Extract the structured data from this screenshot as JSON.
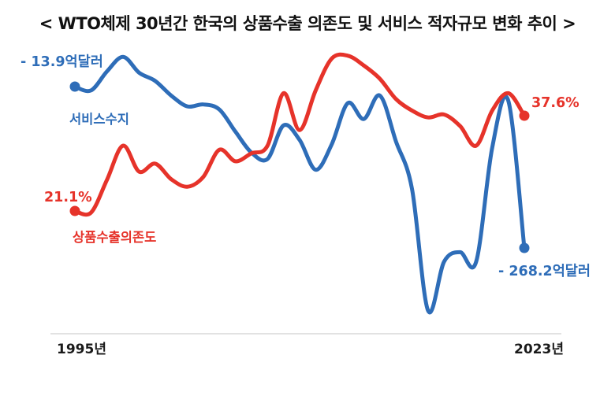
{
  "page": {
    "background": "#ffffff"
  },
  "chart_data": {
    "type": "line",
    "title": "< WTO체제 30년간 한국의 상품수출 의존도 및 서비스 적자규모 변화 추이 >",
    "x": [
      1995,
      1996,
      1997,
      1998,
      1999,
      2000,
      2001,
      2002,
      2003,
      2004,
      2005,
      2006,
      2007,
      2008,
      2009,
      2010,
      2011,
      2012,
      2013,
      2014,
      2015,
      2016,
      2017,
      2018,
      2019,
      2020,
      2021,
      2022,
      2023
    ],
    "series": [
      {
        "name": "서비스수지",
        "unit": "억달러",
        "color": "#2e6db8",
        "axis": "left",
        "values": [
          -13.9,
          -20,
          10,
          33,
          8,
          -5,
          -28,
          -45,
          -42,
          -50,
          -85,
          -118,
          -128,
          -75,
          -98,
          -145,
          -105,
          -40,
          -65,
          -28,
          -100,
          -175,
          -367,
          -290,
          -275,
          -290,
          -110,
          -36,
          -268.2
        ]
      },
      {
        "name": "상품수출의존도",
        "unit": "%",
        "color": "#e6332a",
        "axis": "right",
        "values": [
          21.1,
          20.8,
          26.5,
          32.4,
          27.9,
          29.3,
          26.6,
          25.3,
          27.0,
          31.7,
          29.7,
          31.1,
          32.4,
          41.5,
          35.1,
          42.0,
          47.5,
          48.0,
          46.3,
          44.0,
          40.5,
          38.5,
          37.3,
          37.8,
          35.8,
          32.4,
          38.5,
          41.5,
          37.6
        ]
      }
    ],
    "annotations": {
      "services_start": "- 13.9억달러",
      "services_end": "- 268.2억달러",
      "export_start": "21.1%",
      "export_end": "37.6%"
    },
    "x_ticks": [
      "1995년",
      "2023년"
    ],
    "layout": {
      "grid": false,
      "legend": "none",
      "left_axis_range": [
        -400,
        50
      ],
      "right_axis_range": [
        15,
        50
      ],
      "x_axis_line_color": "#d9d9d9"
    }
  }
}
